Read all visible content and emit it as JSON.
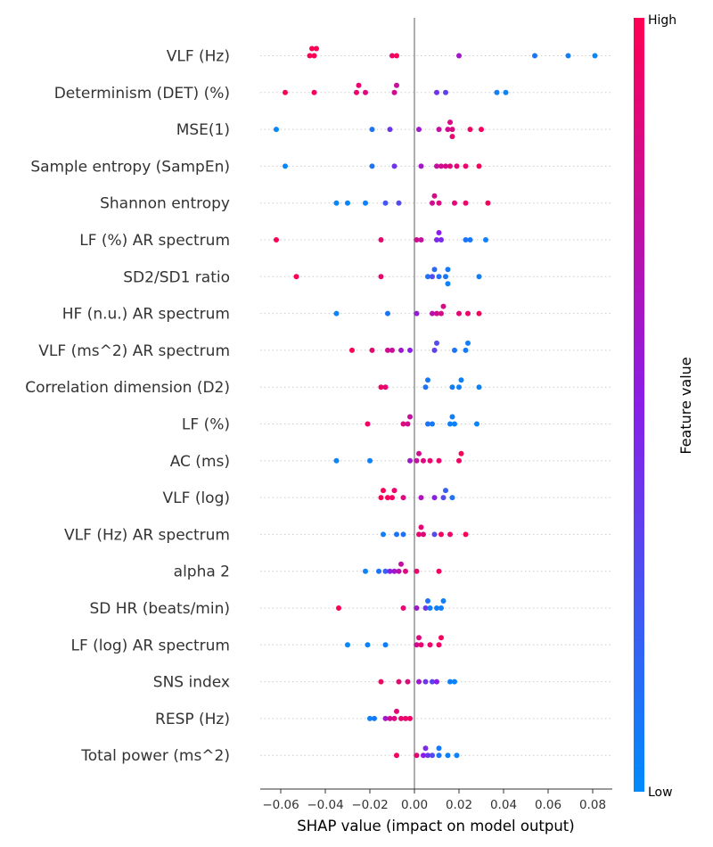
{
  "chart_data": {
    "type": "scatter",
    "subtype": "shap-beeswarm-summary",
    "xlabel": "SHAP value (impact on model output)",
    "xlim": [
      -0.068,
      0.087
    ],
    "xticks": [
      -0.06,
      -0.04,
      -0.02,
      0.0,
      0.02,
      0.04,
      0.06,
      0.08
    ],
    "xtick_labels": [
      "−0.06",
      "−0.04",
      "−0.02",
      "0.00",
      "0.02",
      "0.04",
      "0.06",
      "0.08"
    ],
    "zero_line": true,
    "row_gridlines": "dotted",
    "colorbar": {
      "label": "Feature value",
      "high_label": "High",
      "low_label": "Low",
      "high_color": "#ff0052",
      "mid_color": "#8a1ee8",
      "low_color": "#008bfb"
    },
    "features": [
      {
        "name": "VLF (Hz)",
        "points": [
          [
            -0.047,
            0.98
          ],
          [
            -0.046,
            0.98
          ],
          [
            -0.045,
            0.98
          ],
          [
            -0.044,
            0.98
          ],
          [
            -0.01,
            0.92
          ],
          [
            -0.008,
            0.98
          ],
          [
            0.02,
            0.6
          ],
          [
            0.054,
            0.1
          ],
          [
            0.069,
            0.05
          ],
          [
            0.081,
            0.02
          ]
        ]
      },
      {
        "name": "Determinism (DET) (%)",
        "points": [
          [
            -0.058,
            0.98
          ],
          [
            -0.045,
            0.95
          ],
          [
            -0.026,
            0.92
          ],
          [
            -0.025,
            0.9
          ],
          [
            -0.022,
            0.85
          ],
          [
            -0.009,
            0.8
          ],
          [
            -0.008,
            0.75
          ],
          [
            0.01,
            0.4
          ],
          [
            0.014,
            0.35
          ],
          [
            0.037,
            0.05
          ],
          [
            0.041,
            0.02
          ]
        ]
      },
      {
        "name": "MSE(1)",
        "points": [
          [
            -0.062,
            0.02
          ],
          [
            -0.019,
            0.1
          ],
          [
            -0.011,
            0.4
          ],
          [
            0.002,
            0.6
          ],
          [
            0.011,
            0.75
          ],
          [
            0.015,
            0.8
          ],
          [
            0.016,
            0.82
          ],
          [
            0.017,
            0.85
          ],
          [
            0.017,
            0.9
          ],
          [
            0.025,
            0.93
          ],
          [
            0.03,
            0.96
          ]
        ]
      },
      {
        "name": "Sample entropy (SampEn)",
        "points": [
          [
            -0.058,
            0.02
          ],
          [
            -0.019,
            0.1
          ],
          [
            -0.009,
            0.4
          ],
          [
            0.003,
            0.6
          ],
          [
            0.01,
            0.75
          ],
          [
            0.012,
            0.8
          ],
          [
            0.014,
            0.83
          ],
          [
            0.016,
            0.86
          ],
          [
            0.019,
            0.88
          ],
          [
            0.023,
            0.92
          ],
          [
            0.029,
            0.96
          ]
        ]
      },
      {
        "name": "Shannon entropy",
        "points": [
          [
            -0.035,
            0.02
          ],
          [
            -0.03,
            0.03
          ],
          [
            -0.022,
            0.05
          ],
          [
            -0.013,
            0.25
          ],
          [
            -0.007,
            0.3
          ],
          [
            0.008,
            0.8
          ],
          [
            0.009,
            0.82
          ],
          [
            0.011,
            0.85
          ],
          [
            0.018,
            0.88
          ],
          [
            0.023,
            0.92
          ],
          [
            0.033,
            0.96
          ]
        ]
      },
      {
        "name": "LF (%) AR spectrum",
        "points": [
          [
            -0.062,
            0.98
          ],
          [
            -0.015,
            0.9
          ],
          [
            0.001,
            0.8
          ],
          [
            0.003,
            0.75
          ],
          [
            0.01,
            0.45
          ],
          [
            0.011,
            0.5
          ],
          [
            0.012,
            0.45
          ],
          [
            0.023,
            0.1
          ],
          [
            0.025,
            0.08
          ],
          [
            0.032,
            0.05
          ]
        ]
      },
      {
        "name": "SD2/SD1 ratio",
        "points": [
          [
            -0.053,
            0.98
          ],
          [
            -0.015,
            0.9
          ],
          [
            0.006,
            0.1
          ],
          [
            0.008,
            0.3
          ],
          [
            0.009,
            0.15
          ],
          [
            0.011,
            0.12
          ],
          [
            0.014,
            0.1
          ],
          [
            0.015,
            0.08
          ],
          [
            0.015,
            0.05
          ],
          [
            0.029,
            0.05
          ]
        ]
      },
      {
        "name": "HF (n.u.) AR spectrum",
        "points": [
          [
            -0.035,
            0.02
          ],
          [
            -0.012,
            0.1
          ],
          [
            0.001,
            0.55
          ],
          [
            0.008,
            0.7
          ],
          [
            0.01,
            0.8
          ],
          [
            0.012,
            0.82
          ],
          [
            0.013,
            0.84
          ],
          [
            0.02,
            0.88
          ],
          [
            0.024,
            0.92
          ],
          [
            0.029,
            0.96
          ]
        ]
      },
      {
        "name": "VLF (ms^2) AR spectrum",
        "points": [
          [
            -0.028,
            0.98
          ],
          [
            -0.019,
            0.9
          ],
          [
            -0.012,
            0.8
          ],
          [
            -0.01,
            0.75
          ],
          [
            -0.006,
            0.6
          ],
          [
            -0.002,
            0.5
          ],
          [
            0.009,
            0.35
          ],
          [
            0.01,
            0.3
          ],
          [
            0.018,
            0.1
          ],
          [
            0.023,
            0.08
          ],
          [
            0.024,
            0.05
          ]
        ]
      },
      {
        "name": "Correlation dimension (D2)",
        "points": [
          [
            -0.015,
            0.95
          ],
          [
            -0.013,
            0.9
          ],
          [
            0.005,
            0.1
          ],
          [
            0.006,
            0.08
          ],
          [
            0.017,
            0.06
          ],
          [
            0.02,
            0.05
          ],
          [
            0.021,
            0.04
          ],
          [
            0.029,
            0.03
          ]
        ]
      },
      {
        "name": "LF (%)",
        "points": [
          [
            -0.021,
            0.95
          ],
          [
            -0.005,
            0.85
          ],
          [
            -0.003,
            0.8
          ],
          [
            -0.002,
            0.75
          ],
          [
            0.006,
            0.1
          ],
          [
            0.008,
            0.08
          ],
          [
            0.016,
            0.05
          ],
          [
            0.017,
            0.06
          ],
          [
            0.018,
            0.04
          ],
          [
            0.028,
            0.03
          ]
        ]
      },
      {
        "name": "AC (ms)",
        "points": [
          [
            -0.035,
            0.02
          ],
          [
            -0.02,
            0.05
          ],
          [
            -0.002,
            0.6
          ],
          [
            0.001,
            0.75
          ],
          [
            0.002,
            0.8
          ],
          [
            0.004,
            0.85
          ],
          [
            0.007,
            0.9
          ],
          [
            0.011,
            0.92
          ],
          [
            0.02,
            0.95
          ],
          [
            0.021,
            0.97
          ]
        ]
      },
      {
        "name": "VLF (log)",
        "points": [
          [
            -0.015,
            0.98
          ],
          [
            -0.014,
            0.97
          ],
          [
            -0.012,
            0.96
          ],
          [
            -0.01,
            0.95
          ],
          [
            -0.009,
            0.92
          ],
          [
            -0.005,
            0.85
          ],
          [
            0.003,
            0.65
          ],
          [
            0.009,
            0.5
          ],
          [
            0.013,
            0.3
          ],
          [
            0.014,
            0.2
          ],
          [
            0.017,
            0.1
          ]
        ]
      },
      {
        "name": "VLF (Hz) AR spectrum",
        "points": [
          [
            -0.014,
            0.05
          ],
          [
            -0.008,
            0.1
          ],
          [
            -0.005,
            0.12
          ],
          [
            0.002,
            0.9
          ],
          [
            0.003,
            0.88
          ],
          [
            0.004,
            0.86
          ],
          [
            0.009,
            0.3
          ],
          [
            0.012,
            0.95
          ],
          [
            0.016,
            0.92
          ],
          [
            0.023,
            0.97
          ]
        ]
      },
      {
        "name": "alpha 2",
        "points": [
          [
            -0.022,
            0.05
          ],
          [
            -0.016,
            0.1
          ],
          [
            -0.013,
            0.2
          ],
          [
            -0.011,
            0.5
          ],
          [
            -0.009,
            0.6
          ],
          [
            -0.007,
            0.7
          ],
          [
            -0.006,
            0.75
          ],
          [
            -0.004,
            0.85
          ],
          [
            0.001,
            0.9
          ],
          [
            0.011,
            0.95
          ]
        ]
      },
      {
        "name": "SD HR (beats/min)",
        "points": [
          [
            -0.034,
            0.98
          ],
          [
            -0.005,
            0.9
          ],
          [
            0.001,
            0.6
          ],
          [
            0.005,
            0.4
          ],
          [
            0.006,
            0.1
          ],
          [
            0.007,
            0.08
          ],
          [
            0.01,
            0.06
          ],
          [
            0.012,
            0.05
          ],
          [
            0.013,
            0.04
          ]
        ]
      },
      {
        "name": "LF (log) AR spectrum",
        "points": [
          [
            -0.03,
            0.02
          ],
          [
            -0.021,
            0.04
          ],
          [
            -0.013,
            0.06
          ],
          [
            0.001,
            0.8
          ],
          [
            0.002,
            0.85
          ],
          [
            0.003,
            0.9
          ],
          [
            0.007,
            0.92
          ],
          [
            0.011,
            0.95
          ],
          [
            0.012,
            0.96
          ]
        ]
      },
      {
        "name": "SNS index",
        "points": [
          [
            -0.015,
            0.95
          ],
          [
            -0.007,
            0.9
          ],
          [
            -0.003,
            0.85
          ],
          [
            0.002,
            0.6
          ],
          [
            0.005,
            0.4
          ],
          [
            0.008,
            0.35
          ],
          [
            0.01,
            0.5
          ],
          [
            0.016,
            0.05
          ],
          [
            0.018,
            0.04
          ]
        ]
      },
      {
        "name": "RESP (Hz)",
        "points": [
          [
            -0.02,
            0.05
          ],
          [
            -0.018,
            0.08
          ],
          [
            -0.013,
            0.6
          ],
          [
            -0.011,
            0.8
          ],
          [
            -0.009,
            0.85
          ],
          [
            -0.008,
            0.88
          ],
          [
            -0.006,
            0.9
          ],
          [
            -0.004,
            0.92
          ],
          [
            -0.002,
            0.95
          ]
        ]
      },
      {
        "name": "Total power (ms^2)",
        "points": [
          [
            -0.008,
            0.95
          ],
          [
            0.001,
            0.9
          ],
          [
            0.004,
            0.5
          ],
          [
            0.005,
            0.45
          ],
          [
            0.006,
            0.4
          ],
          [
            0.008,
            0.3
          ],
          [
            0.011,
            0.1
          ],
          [
            0.011,
            0.08
          ],
          [
            0.015,
            0.06
          ],
          [
            0.019,
            0.05
          ]
        ]
      }
    ]
  }
}
